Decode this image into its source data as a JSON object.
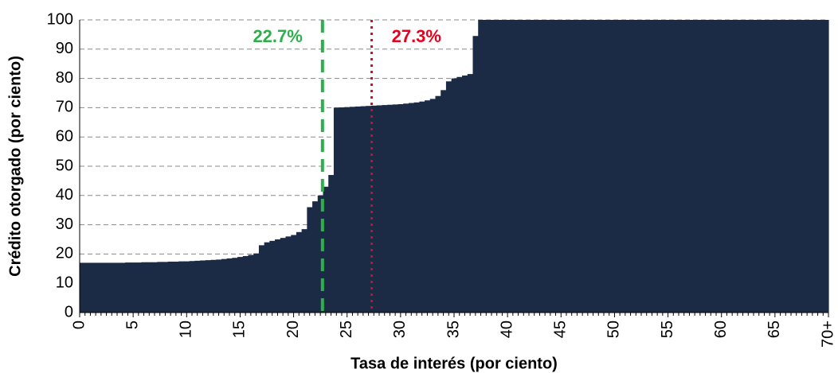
{
  "chart_data": {
    "type": "bar",
    "xlabel": "Tasa de interés (por ciento)",
    "ylabel": "Crédito otorgado (por ciento)",
    "color": "#1c2b45",
    "categories": [
      "0",
      null,
      null,
      null,
      null,
      null,
      null,
      null,
      null,
      null,
      "5",
      null,
      null,
      null,
      null,
      null,
      null,
      null,
      null,
      null,
      "10",
      null,
      null,
      null,
      null,
      null,
      null,
      null,
      null,
      null,
      "15",
      null,
      null,
      null,
      null,
      null,
      null,
      null,
      null,
      null,
      "20",
      null,
      null,
      null,
      null,
      null,
      null,
      null,
      null,
      null,
      "25",
      null,
      null,
      null,
      null,
      null,
      null,
      null,
      null,
      null,
      "30",
      null,
      null,
      null,
      null,
      null,
      null,
      null,
      null,
      null,
      "35",
      null,
      null,
      null,
      null,
      null,
      null,
      null,
      null,
      null,
      "40",
      null,
      null,
      null,
      null,
      null,
      null,
      null,
      null,
      null,
      "45",
      null,
      null,
      null,
      null,
      null,
      null,
      null,
      null,
      null,
      "50",
      null,
      null,
      null,
      null,
      null,
      null,
      null,
      null,
      null,
      "55",
      null,
      null,
      null,
      null,
      null,
      null,
      null,
      null,
      null,
      "60",
      null,
      null,
      null,
      null,
      null,
      null,
      null,
      null,
      null,
      "65",
      null,
      null,
      null,
      null,
      null,
      null,
      null,
      null,
      null,
      "70+"
    ],
    "values": [
      17,
      17,
      17,
      17,
      17,
      17,
      17,
      17,
      17,
      17.1,
      17.1,
      17.1,
      17.2,
      17.2,
      17.2,
      17.3,
      17.3,
      17.4,
      17.4,
      17.5,
      17.5,
      17.6,
      17.7,
      17.8,
      17.9,
      18,
      18.1,
      18.3,
      18.5,
      18.7,
      19,
      19.3,
      19.7,
      20.2,
      23,
      24,
      24.5,
      25,
      25.5,
      26,
      26.5,
      27.5,
      28.5,
      36,
      38,
      40,
      43,
      47,
      70,
      70.1,
      70.2,
      70.3,
      70.4,
      70.5,
      70.6,
      70.7,
      70.8,
      70.9,
      71,
      71.1,
      71.2,
      71.4,
      71.6,
      71.8,
      72.1,
      72.5,
      73,
      74,
      76,
      79,
      80,
      80.5,
      81,
      81.5,
      94.5,
      100,
      100,
      100,
      100,
      100,
      100,
      100,
      100,
      100,
      100,
      100,
      100,
      100,
      100,
      100,
      100,
      100,
      100,
      100,
      100,
      100,
      100,
      100,
      100,
      100,
      100,
      100,
      100,
      100,
      100,
      100,
      100,
      100,
      100,
      100,
      100,
      100,
      100,
      100,
      100,
      100,
      100,
      100,
      100,
      100,
      100,
      100,
      100,
      100,
      100,
      100,
      100,
      100,
      100,
      100,
      100,
      100,
      100,
      100,
      100,
      100,
      100,
      100,
      100,
      100,
      100
    ],
    "xlim": [
      0,
      70
    ],
    "ylim": [
      0,
      100
    ],
    "yticks": [
      0,
      10,
      20,
      30,
      40,
      50,
      60,
      70,
      80,
      90,
      100
    ],
    "grid": true,
    "annotations": [
      {
        "value": 22.7,
        "label": "22.7%",
        "color": "#2db04b",
        "style": "dashed"
      },
      {
        "value": 27.3,
        "label": "27.3%",
        "color": "#e8001c",
        "style": "dotted"
      }
    ]
  }
}
